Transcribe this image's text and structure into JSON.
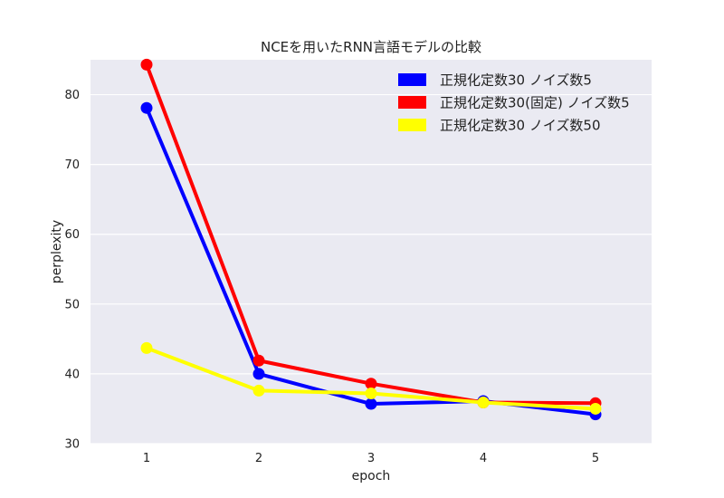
{
  "chart_data": {
    "type": "line",
    "title": "NCEを用いたRNN言語モデルの比較",
    "xlabel": "epoch",
    "ylabel": "perplexity",
    "x": [
      1,
      2,
      3,
      4,
      5
    ],
    "xlim": [
      0.5,
      5.5
    ],
    "ylim": [
      30,
      85
    ],
    "xticks": [
      "1",
      "2",
      "3",
      "4",
      "5"
    ],
    "yticks": [
      "30",
      "40",
      "50",
      "60",
      "70",
      "80"
    ],
    "grid": true,
    "legend_position": "top-right",
    "series": [
      {
        "name": "正規化定数30 ノイズ数5",
        "color": "#0000ff",
        "values": [
          78.1,
          40.0,
          35.7,
          36.1,
          34.2
        ]
      },
      {
        "name": "正規化定数30(固定) ノイズ数5",
        "color": "#ff0000",
        "values": [
          84.3,
          41.9,
          38.6,
          35.9,
          35.8
        ]
      },
      {
        "name": "正規化定数30 ノイズ数50",
        "color": "#ffff00",
        "values": [
          43.7,
          37.6,
          37.2,
          35.9,
          35.0
        ]
      }
    ]
  }
}
